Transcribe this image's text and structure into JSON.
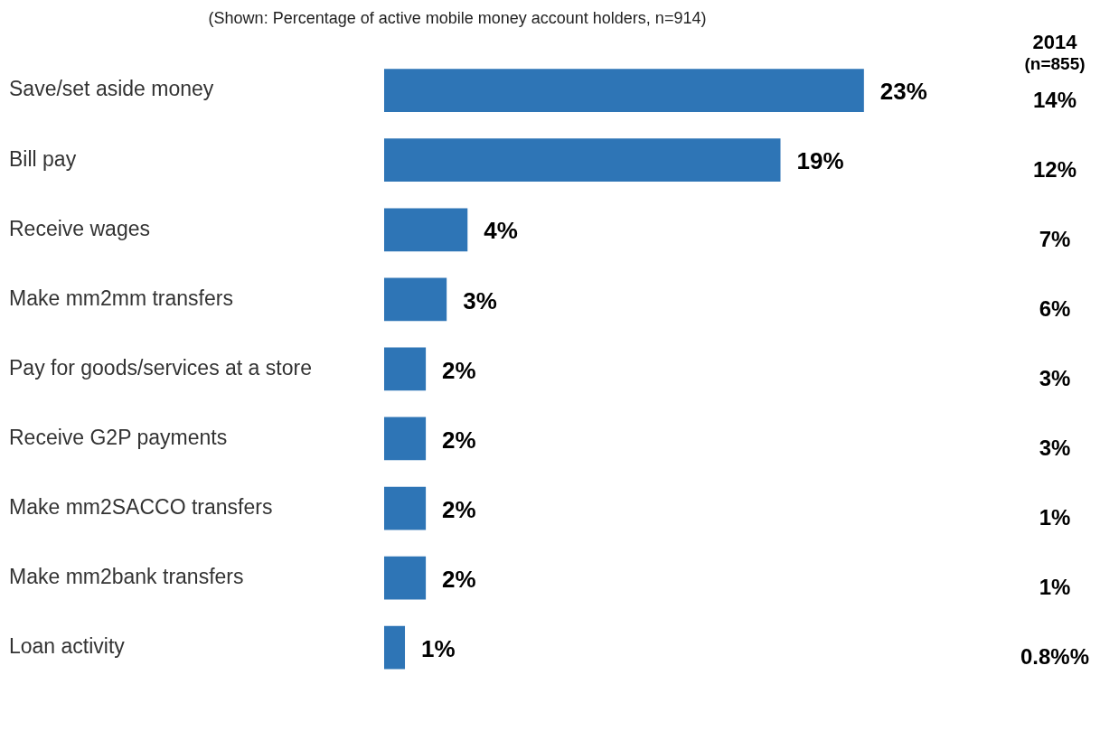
{
  "chart_data": {
    "type": "bar",
    "orientation": "horizontal",
    "subtitle": "(Shown: Percentage of active mobile money account holders, n=914)",
    "categories": [
      "Save/set aside money",
      "Bill pay",
      "Receive wages",
      "Make mm2mm transfers",
      "Pay for goods/services at a store",
      "Receive G2P payments",
      "Make mm2SACCO transfers",
      "Make mm2bank transfers",
      "Loan activity"
    ],
    "values": [
      23,
      19,
      4,
      3,
      2,
      2,
      2,
      2,
      1
    ],
    "color": "#2e75b6",
    "value_labels": [
      "23%",
      "19%",
      "4%",
      "3%",
      "2%",
      "2%",
      "2%",
      "2%",
      "1%"
    ],
    "tick_labels": "y",
    "grid": false,
    "legend": false,
    "annotations": [
      "2014",
      "(n=855)",
      "14%",
      "12%",
      "7%",
      "6%",
      "3%",
      "3%",
      "1%",
      "1%",
      "0.8%%"
    ]
  }
}
